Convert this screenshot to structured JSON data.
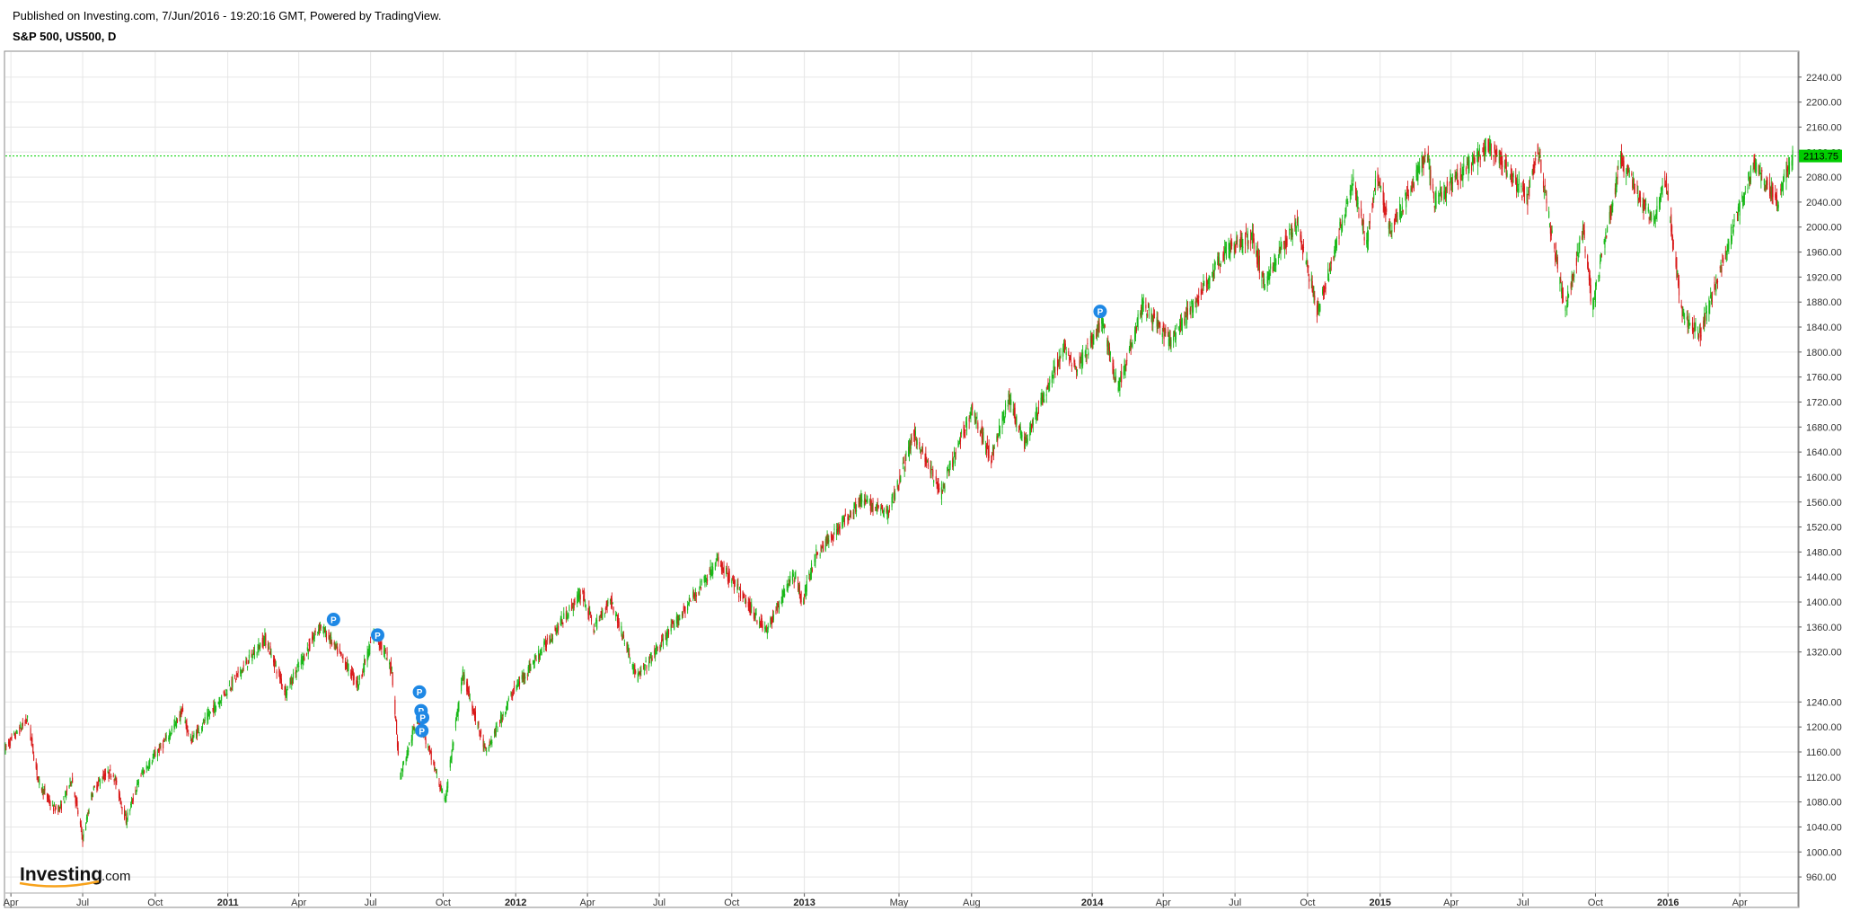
{
  "header": {
    "published": "Published on Investing.com, 7/Jun/2016 - 19:20:16 GMT, Powered by TradingView.",
    "symbol": "S&P 500, US500, D"
  },
  "logo": {
    "main": "Investing",
    "suffix": ".com"
  },
  "colors": {
    "up": "#18b818",
    "down": "#d81818",
    "grid": "#e6e6e6",
    "last_line": "#00d200",
    "last_badge": "#00cc00",
    "marker": "#1e88e5"
  },
  "chart_data": {
    "type": "candlestick",
    "series_name": "S&P 500, US500, D",
    "x_start": "2010-03-25",
    "x_end": "2016-06-07",
    "ylim": [
      940,
      2280
    ],
    "y_ticks": [
      960,
      1000,
      1040,
      1080,
      1120,
      1160,
      1200,
      1240,
      1320,
      1360,
      1400,
      1440,
      1480,
      1520,
      1560,
      1600,
      1640,
      1680,
      1720,
      1760,
      1800,
      1840,
      1880,
      1920,
      1960,
      2000,
      2040,
      2080,
      2120,
      2160,
      2200,
      2240
    ],
    "y_tick_labels": [
      "960.00",
      "1000.00",
      "1040.00",
      "1080.00",
      "1120.00",
      "1160.00",
      "1200.00",
      "1240.00",
      "1320.00",
      "1360.00",
      "1400.00",
      "1440.00",
      "1480.00",
      "1520.00",
      "1560.00",
      "1600.00",
      "1640.00",
      "1680.00",
      "1720.00",
      "1760.00",
      "1800.00",
      "1840.00",
      "1880.00",
      "1920.00",
      "1960.00",
      "2000.00",
      "2040.00",
      "2080.00",
      "2120.00",
      "2160.00",
      "2200.00",
      "2240.00"
    ],
    "x_ticks": [
      {
        "date": "2010-04-01",
        "label": "Apr",
        "year": false
      },
      {
        "date": "2010-07-01",
        "label": "Jul",
        "year": false
      },
      {
        "date": "2010-10-01",
        "label": "Oct",
        "year": false
      },
      {
        "date": "2011-01-01",
        "label": "2011",
        "year": true
      },
      {
        "date": "2011-04-01",
        "label": "Apr",
        "year": false
      },
      {
        "date": "2011-07-01",
        "label": "Jul",
        "year": false
      },
      {
        "date": "2011-10-01",
        "label": "Oct",
        "year": false
      },
      {
        "date": "2012-01-01",
        "label": "2012",
        "year": true
      },
      {
        "date": "2012-04-01",
        "label": "Apr",
        "year": false
      },
      {
        "date": "2012-07-01",
        "label": "Jul",
        "year": false
      },
      {
        "date": "2012-10-01",
        "label": "Oct",
        "year": false
      },
      {
        "date": "2013-01-01",
        "label": "2013",
        "year": true
      },
      {
        "date": "2013-05-01",
        "label": "May",
        "year": false
      },
      {
        "date": "2013-08-01",
        "label": "Aug",
        "year": false
      },
      {
        "date": "2014-01-01",
        "label": "2014",
        "year": true
      },
      {
        "date": "2014-04-01",
        "label": "Apr",
        "year": false
      },
      {
        "date": "2014-07-01",
        "label": "Jul",
        "year": false
      },
      {
        "date": "2014-10-01",
        "label": "Oct",
        "year": false
      },
      {
        "date": "2015-01-01",
        "label": "2015",
        "year": true
      },
      {
        "date": "2015-04-01",
        "label": "Apr",
        "year": false
      },
      {
        "date": "2015-07-01",
        "label": "Jul",
        "year": false
      },
      {
        "date": "2015-10-01",
        "label": "Oct",
        "year": false
      },
      {
        "date": "2016-01-01",
        "label": "2016",
        "year": true
      },
      {
        "date": "2016-04-01",
        "label": "Apr",
        "year": false
      }
    ],
    "last_value": 2113.75,
    "last_label": "2113.75",
    "price_path": [
      [
        "2010-03-25",
        1165
      ],
      [
        "2010-04-23",
        1212
      ],
      [
        "2010-05-07",
        1112
      ],
      [
        "2010-05-25",
        1070
      ],
      [
        "2010-06-04",
        1070
      ],
      [
        "2010-06-18",
        1118
      ],
      [
        "2010-07-02",
        1020
      ],
      [
        "2010-07-14",
        1095
      ],
      [
        "2010-07-27",
        1120
      ],
      [
        "2010-08-09",
        1128
      ],
      [
        "2010-08-26",
        1050
      ],
      [
        "2010-09-13",
        1122
      ],
      [
        "2010-10-15",
        1178
      ],
      [
        "2010-11-05",
        1225
      ],
      [
        "2010-11-16",
        1178
      ],
      [
        "2010-12-31",
        1258
      ],
      [
        "2011-02-18",
        1342
      ],
      [
        "2011-03-16",
        1256
      ],
      [
        "2011-04-29",
        1363
      ],
      [
        "2011-05-23",
        1318
      ],
      [
        "2011-06-16",
        1268
      ],
      [
        "2011-07-07",
        1353
      ],
      [
        "2011-07-29",
        1292
      ],
      [
        "2011-08-08",
        1120
      ],
      [
        "2011-08-31",
        1218
      ],
      [
        "2011-09-22",
        1130
      ],
      [
        "2011-10-04",
        1080
      ],
      [
        "2011-10-27",
        1285
      ],
      [
        "2011-11-25",
        1158
      ],
      [
        "2011-12-30",
        1258
      ],
      [
        "2012-03-26",
        1416
      ],
      [
        "2012-04-10",
        1358
      ],
      [
        "2012-05-01",
        1405
      ],
      [
        "2012-06-04",
        1278
      ],
      [
        "2012-07-20",
        1362
      ],
      [
        "2012-09-14",
        1466
      ],
      [
        "2012-11-15",
        1353
      ],
      [
        "2012-12-18",
        1446
      ],
      [
        "2012-12-31",
        1402
      ],
      [
        "2013-01-15",
        1472
      ],
      [
        "2013-03-14",
        1563
      ],
      [
        "2013-04-18",
        1542
      ],
      [
        "2013-05-21",
        1669
      ],
      [
        "2013-06-24",
        1573
      ],
      [
        "2013-08-02",
        1709
      ],
      [
        "2013-08-27",
        1630
      ],
      [
        "2013-09-18",
        1725
      ],
      [
        "2013-10-08",
        1655
      ],
      [
        "2013-11-27",
        1806
      ],
      [
        "2013-12-13",
        1775
      ],
      [
        "2014-01-15",
        1848
      ],
      [
        "2014-02-03",
        1741
      ],
      [
        "2014-03-07",
        1878
      ],
      [
        "2014-04-11",
        1815
      ],
      [
        "2014-06-20",
        1962
      ],
      [
        "2014-07-24",
        1987
      ],
      [
        "2014-08-07",
        1909
      ],
      [
        "2014-09-18",
        2011
      ],
      [
        "2014-10-15",
        1862
      ],
      [
        "2014-11-28",
        2072
      ],
      [
        "2014-12-16",
        1972
      ],
      [
        "2014-12-29",
        2090
      ],
      [
        "2015-01-15",
        1992
      ],
      [
        "2015-03-02",
        2117
      ],
      [
        "2015-03-11",
        2040
      ],
      [
        "2015-05-21",
        2130
      ],
      [
        "2015-07-08",
        2046
      ],
      [
        "2015-07-20",
        2128
      ],
      [
        "2015-08-24",
        1867
      ],
      [
        "2015-09-16",
        1995
      ],
      [
        "2015-09-28",
        1872
      ],
      [
        "2015-11-03",
        2109
      ],
      [
        "2015-12-14",
        2005
      ],
      [
        "2015-12-29",
        2078
      ],
      [
        "2016-01-20",
        1859
      ],
      [
        "2016-02-11",
        1829
      ],
      [
        "2016-04-20",
        2102
      ],
      [
        "2016-05-19",
        2040
      ],
      [
        "2016-06-07",
        2112
      ]
    ],
    "markers": [
      {
        "date": "2011-05-15",
        "price": 1372,
        "label": "P"
      },
      {
        "date": "2011-07-10",
        "price": 1347,
        "label": "P"
      },
      {
        "date": "2011-09-01",
        "price": 1256,
        "label": "P"
      },
      {
        "date": "2011-09-03",
        "price": 1226,
        "label": "P"
      },
      {
        "date": "2011-09-05",
        "price": 1215,
        "label": "P"
      },
      {
        "date": "2011-09-04",
        "price": 1194,
        "label": "P"
      },
      {
        "date": "2014-01-11",
        "price": 1865,
        "label": "P"
      }
    ]
  }
}
